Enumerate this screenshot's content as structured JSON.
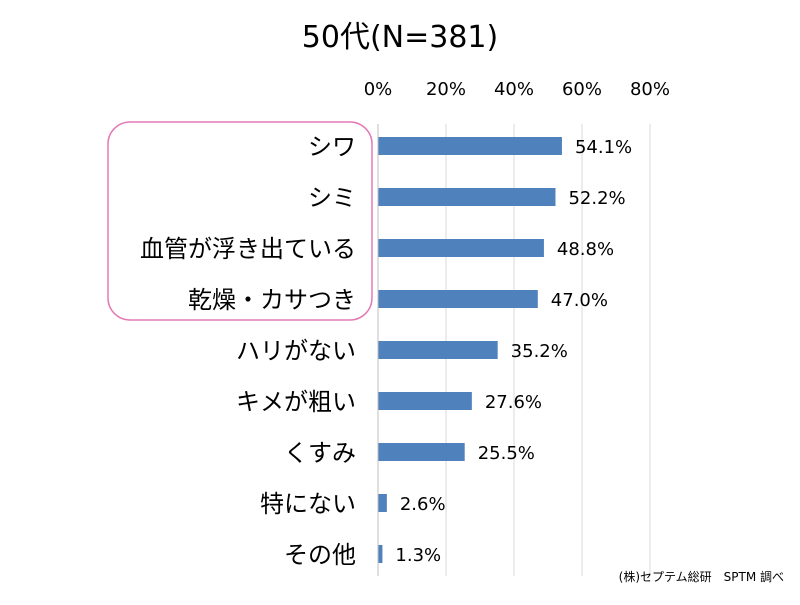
{
  "chart_data": {
    "type": "bar",
    "orientation": "horizontal",
    "title": "50代(N=381)",
    "categories": [
      "シワ",
      "シミ",
      "血管が浮き出ている",
      "乾燥・カサつき",
      "ハリがない",
      "キメが粗い",
      "くすみ",
      "特にない",
      "その他"
    ],
    "values": [
      54.1,
      52.2,
      48.8,
      47.0,
      35.2,
      27.6,
      25.5,
      2.6,
      1.3
    ],
    "value_labels": [
      "54.1%",
      "52.2%",
      "48.8%",
      "47.0%",
      "35.2%",
      "27.6%",
      "25.5%",
      "2.6%",
      "1.3%"
    ],
    "xlim": [
      0,
      80
    ],
    "x_ticks": [
      "0%",
      "20%",
      "40%",
      "60%",
      "80%"
    ],
    "x_tick_values": [
      0,
      20,
      40,
      60,
      80
    ],
    "tick_position": "top",
    "grid": true,
    "highlight_categories": [
      "シワ",
      "シミ",
      "血管が浮き出ている",
      "乾燥・カサつき"
    ],
    "source": "(株)セプテム総研　SPTM 調べ",
    "colors": {
      "bar": "#4f81bd",
      "grid": "#d9d9d9",
      "axis": "#bfbfbf",
      "highlight": "#e37ab6"
    }
  }
}
